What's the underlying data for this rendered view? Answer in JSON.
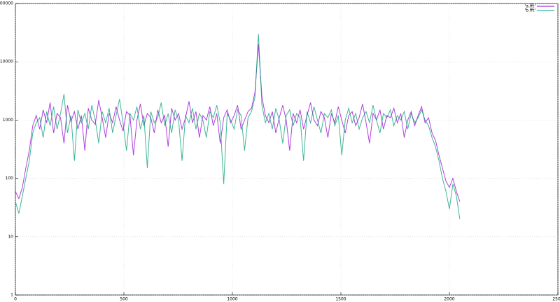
{
  "chart_data": {
    "type": "line",
    "x": [
      0,
      16,
      32,
      48,
      64,
      80,
      96,
      112,
      128,
      144,
      160,
      176,
      192,
      208,
      224,
      240,
      256,
      272,
      288,
      304,
      320,
      336,
      352,
      368,
      384,
      400,
      416,
      432,
      448,
      464,
      480,
      496,
      512,
      528,
      544,
      560,
      576,
      592,
      608,
      624,
      640,
      656,
      672,
      688,
      704,
      720,
      736,
      752,
      768,
      784,
      800,
      816,
      832,
      848,
      864,
      880,
      896,
      912,
      928,
      944,
      960,
      976,
      992,
      1008,
      1024,
      1040,
      1056,
      1072,
      1088,
      1104,
      1120,
      1136,
      1152,
      1168,
      1184,
      1200,
      1216,
      1232,
      1248,
      1264,
      1280,
      1296,
      1312,
      1328,
      1344,
      1360,
      1376,
      1392,
      1408,
      1424,
      1440,
      1456,
      1472,
      1488,
      1504,
      1520,
      1536,
      1552,
      1568,
      1584,
      1600,
      1616,
      1632,
      1648,
      1664,
      1680,
      1696,
      1712,
      1728,
      1744,
      1760,
      1776,
      1792,
      1808,
      1824,
      1840,
      1856,
      1872,
      1888,
      1904,
      1920,
      1936,
      1952,
      1968,
      1984,
      2000,
      2016,
      2032,
      2048
    ],
    "series": [
      {
        "name": "'a.fft'",
        "color": "#9400d3",
        "values": [
          60,
          45,
          70,
          150,
          300,
          800,
          1200,
          700,
          1500,
          900,
          2000,
          600,
          1300,
          1100,
          400,
          1800,
          950,
          1400,
          700,
          1200,
          300,
          1600,
          1000,
          850,
          2200,
          1100,
          500,
          1300,
          900,
          1700,
          1000,
          650,
          1400,
          1200,
          250,
          1000,
          1900,
          800,
          1300,
          1100,
          600,
          1500,
          900,
          1200,
          350,
          1600,
          1000,
          1300,
          700,
          1100,
          2100,
          900,
          1400,
          500,
          1200,
          1000,
          1700,
          800,
          1300,
          400,
          1100,
          1500,
          900,
          1200,
          1800,
          700,
          1000,
          1400,
          1600,
          3000,
          20000,
          2500,
          1200,
          900,
          1400,
          600,
          1100,
          1800,
          1000,
          300,
          1300,
          900,
          1500,
          700,
          1200,
          2000,
          1000,
          800,
          1400,
          1100,
          500,
          1300,
          900,
          1700,
          1000,
          600,
          1200,
          1400,
          800,
          1100,
          1900,
          900,
          400,
          1300,
          1000,
          1500,
          700,
          1200,
          1100,
          1600,
          900,
          1300,
          500,
          1000,
          1400,
          800,
          1200,
          1700,
          900,
          1100,
          600,
          450,
          250,
          150,
          90,
          70,
          100,
          60,
          40
        ]
      },
      {
        "name": "'b.fft'",
        "color": "#009e73",
        "values": [
          40,
          25,
          50,
          100,
          200,
          600,
          900,
          1100,
          500,
          1400,
          800,
          1700,
          700,
          1300,
          2800,
          600,
          1200,
          200,
          1500,
          900,
          1300,
          700,
          1800,
          1000,
          400,
          1400,
          900,
          1600,
          600,
          1200,
          2300,
          900,
          300,
          1300,
          1000,
          1700,
          700,
          1200,
          150,
          1400,
          900,
          1100,
          2000,
          800,
          1300,
          600,
          1500,
          1000,
          200,
          1200,
          900,
          1600,
          700,
          1300,
          1000,
          500,
          1400,
          1100,
          1800,
          900,
          80,
          1300,
          1000,
          700,
          1500,
          1200,
          300,
          1100,
          1400,
          2500,
          30000,
          1800,
          900,
          1300,
          700,
          1600,
          1000,
          400,
          1200,
          1500,
          800,
          1300,
          1100,
          200,
          1400,
          900,
          1700,
          1000,
          600,
          1300,
          1100,
          1500,
          800,
          1200,
          250,
          1000,
          1600,
          900,
          1300,
          700,
          1100,
          1400,
          900,
          1800,
          1000,
          600,
          1300,
          1100,
          1500,
          800,
          1200,
          1000,
          1400,
          700,
          1300,
          900,
          1100,
          1500,
          1000,
          800,
          500,
          350,
          200,
          100,
          60,
          30,
          80,
          50,
          20
        ]
      }
    ],
    "xlim": [
      0,
      2500
    ],
    "xticks": [
      0,
      500,
      1000,
      1500,
      2000,
      2500
    ],
    "ylim": [
      1,
      100000
    ],
    "yticks": [
      1,
      10,
      100,
      1000,
      10000,
      100000
    ],
    "y_scale": "log",
    "grid": true,
    "legend": "top-right"
  }
}
